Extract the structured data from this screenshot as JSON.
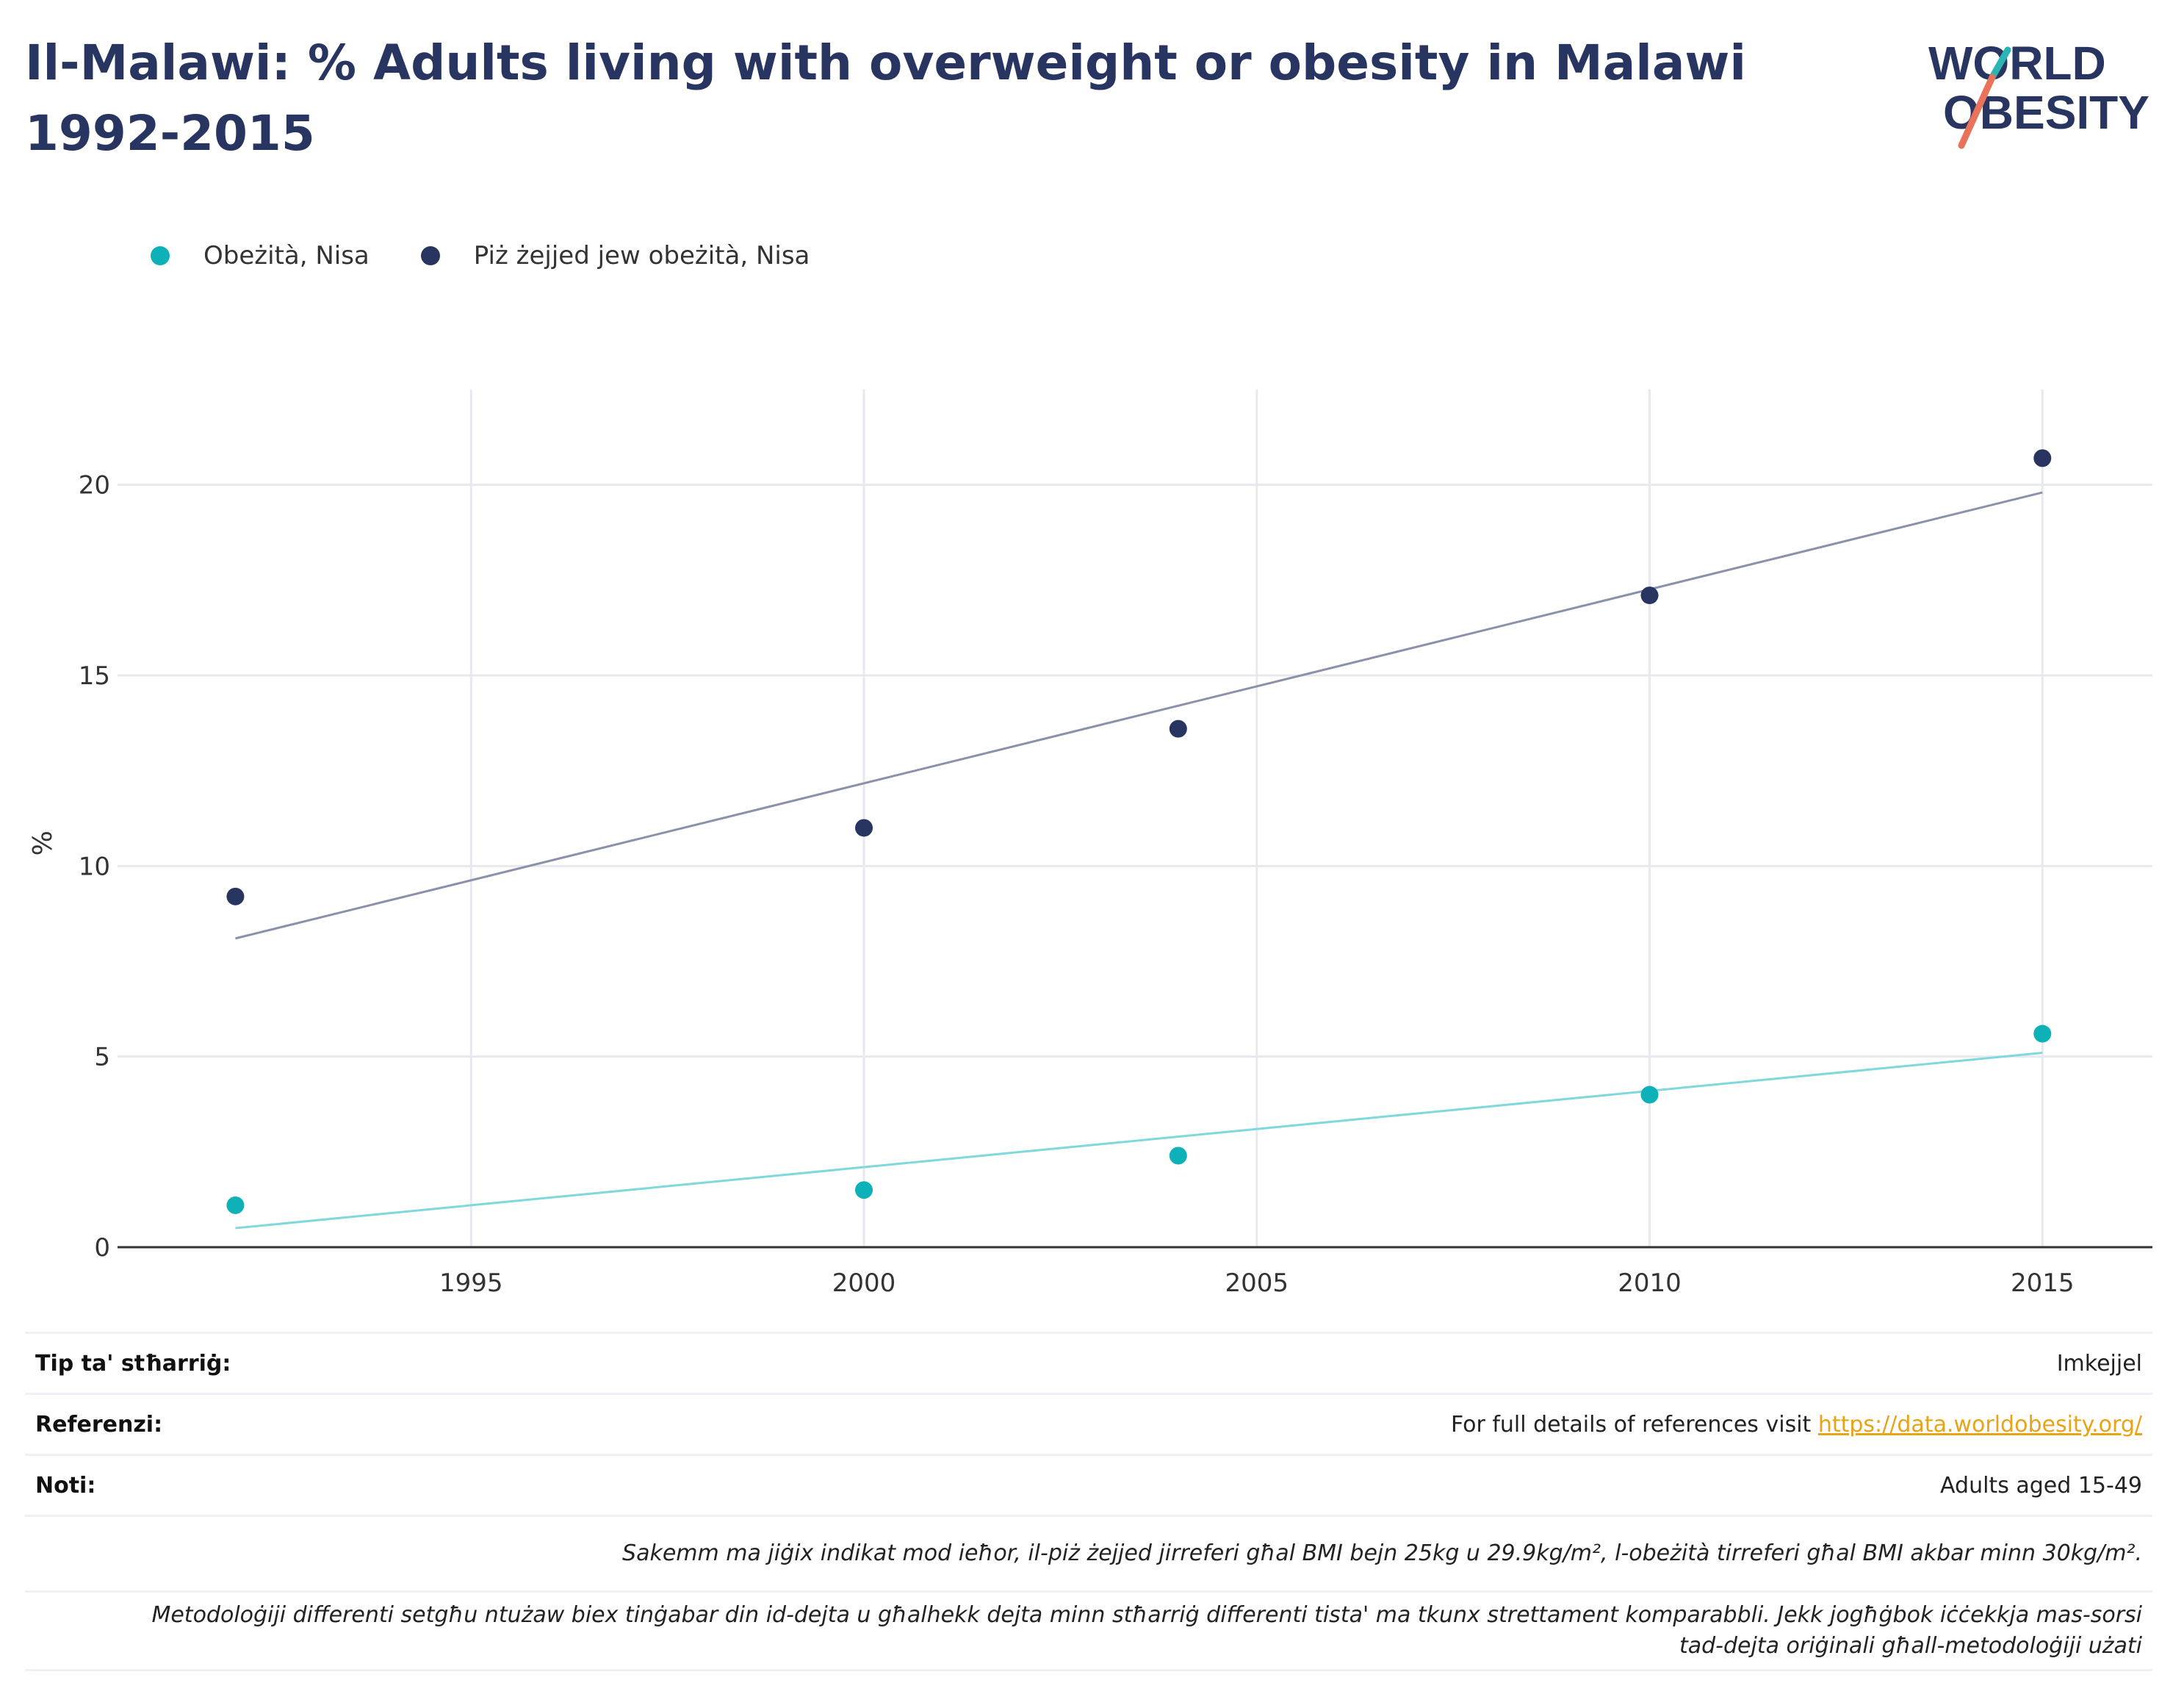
{
  "title": "Il-Malawi: % Adults living with overweight or obesity in Malawi 1992-2015",
  "logo": {
    "line1": "WORLD",
    "line2": "OBESITY",
    "colors": {
      "text": "#283560",
      "slash_top": "#2ab5b5",
      "slash_bottom": "#e8735a"
    }
  },
  "colors": {
    "obese": "#0fb1b8",
    "overweight": "#283560",
    "obese_trend": "#7fd8dc",
    "overweight_trend": "#8a91a8",
    "grid": "#e8e9ef",
    "axis": "#333333"
  },
  "chart_data": {
    "type": "scatter",
    "title": "Il-Malawi: % Adults living with overweight or obesity in Malawi 1992-2015",
    "xlabel": "",
    "ylabel": "%",
    "xlim": [
      1990.5,
      2016.4
    ],
    "ylim": [
      0,
      22.5
    ],
    "xticks": [
      1995,
      2000,
      2005,
      2010,
      2015
    ],
    "yticks": [
      0,
      5,
      10,
      15,
      20
    ],
    "grid": true,
    "legend_position": "top-left",
    "series": [
      {
        "name": "Obeżità, Nisa",
        "x": [
          1992,
          2000,
          2004,
          2010,
          2015
        ],
        "y": [
          1.1,
          1.5,
          2.4,
          4.0,
          5.6
        ],
        "trend": {
          "x": [
            1992,
            2015
          ],
          "y": [
            0.5,
            5.1
          ]
        }
      },
      {
        "name": "Piż żejjed jew obeżità, Nisa",
        "x": [
          1992,
          2000,
          2004,
          2010,
          2015
        ],
        "y": [
          9.2,
          11.0,
          13.6,
          17.1,
          20.7
        ],
        "trend": {
          "x": [
            1992,
            2015
          ],
          "y": [
            8.1,
            19.8
          ]
        }
      }
    ]
  },
  "info": {
    "survey_type_label": "Tip ta' stħarriġ:",
    "survey_type_value": "Imkejjel",
    "references_label": "Referenzi:",
    "references_text": "For full details of references visit ",
    "references_link": "https://data.worldobesity.org/",
    "notes_label": "Noti:",
    "notes_value": "Adults aged 15-49",
    "note_bmi": "Sakemm ma jiġix indikat mod ieħor, il-piż żejjed jirreferi għal BMI bejn 25kg u 29.9kg/m², l-obeżità tirreferi għal BMI akbar minn 30kg/m².",
    "note_methodology_1": "Metodoloġiji differenti setgħu ntużaw biex tinġabar din id-dejta u għalhekk dejta minn stħarriġ differenti tista' ma tkunx strettament komparabbli. Jekk jogħġbok iċċekkja mas-sorsi",
    "note_methodology_2": "tad-dejta oriġinali għall-metodoloġiji użati"
  }
}
